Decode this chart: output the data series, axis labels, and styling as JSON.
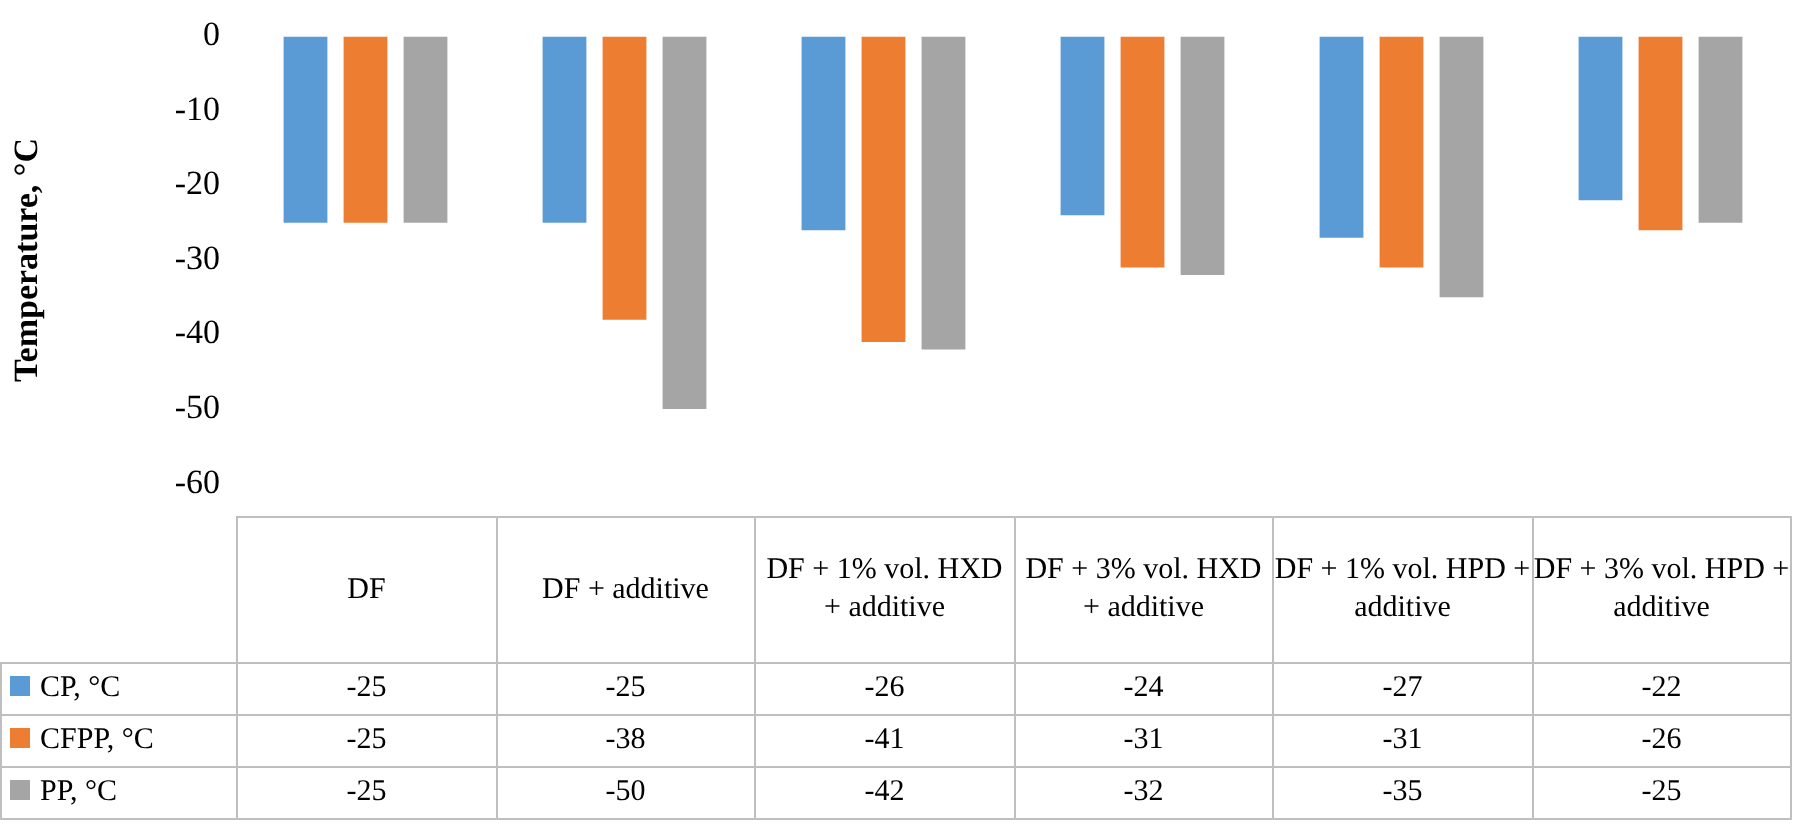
{
  "chart_data": {
    "type": "bar",
    "ylabel": "Temperature, °C",
    "categories": [
      "DF",
      "DF + additive",
      "DF + 1% vol. HXD + additive",
      "DF + 3% vol. HXD + additive",
      "DF + 1% vol. HPD + additive",
      "DF + 3% vol. HPD + additive"
    ],
    "series": [
      {
        "name": "CP, °C",
        "color": "#5b9bd5",
        "values": [
          -25,
          -25,
          -26,
          -24,
          -27,
          -22
        ]
      },
      {
        "name": "CFPP, °C",
        "color": "#ed7d31",
        "values": [
          -25,
          -38,
          -41,
          -31,
          -31,
          -26
        ]
      },
      {
        "name": "PP, °C",
        "color": "#a5a5a5",
        "values": [
          -25,
          -50,
          -42,
          -32,
          -35,
          -25
        ]
      }
    ],
    "ylim": [
      -60,
      0
    ],
    "yticks": [
      -60,
      -50,
      -40,
      -30,
      -20,
      -10,
      0
    ],
    "grid": false,
    "legend": "bottom",
    "data_labels": true
  }
}
